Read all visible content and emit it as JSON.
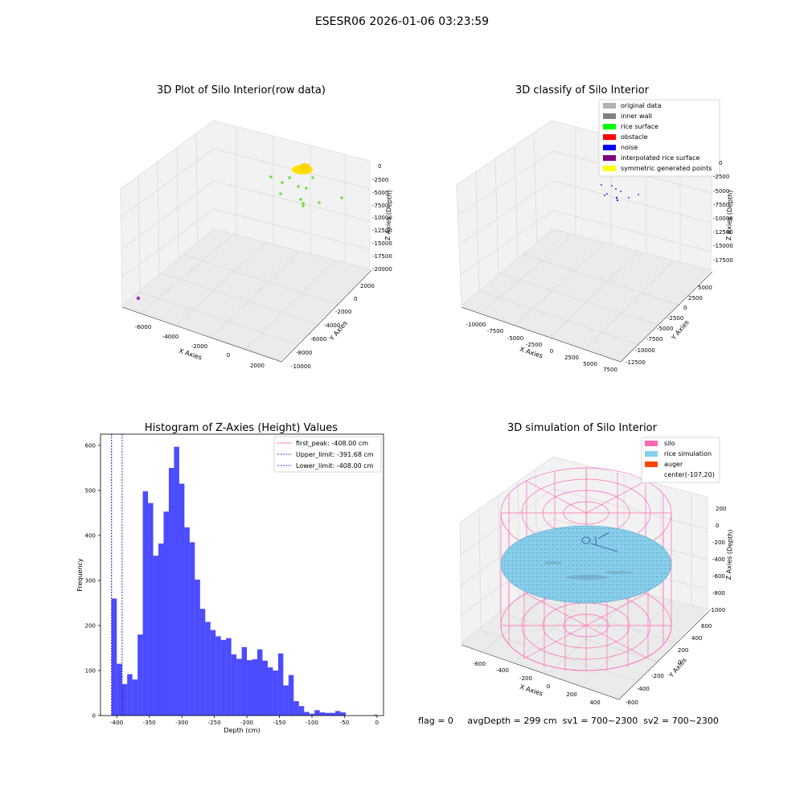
{
  "suptitle": "ESESR06 2026-01-06 03:23:59",
  "panel1": {
    "title": "3D Plot of Silo Interior(row data)",
    "xlabel": "X Axies",
    "ylabel": "Y Axies",
    "zlabel": "Z Axies (Depth)",
    "x_ticks": [
      "-6000",
      "-4000",
      "-2000",
      "0",
      "2000"
    ],
    "y_ticks": [
      "-10000",
      "-8000",
      "-6000",
      "-4000",
      "-2000",
      "0",
      "2000"
    ],
    "z_ticks": [
      "0",
      "-2500",
      "-5000",
      "-7500",
      "-10000",
      "-12500",
      "-15000",
      "-17500",
      "-20000"
    ],
    "colors": {
      "yellow": "#ffe000",
      "green": "#77dd44",
      "purple": "#9933bb"
    }
  },
  "panel2": {
    "title": "3D classify of Silo Interior",
    "xlabel": "X Axies",
    "ylabel": "Y Axies",
    "zlabel": "Z Axies (Depth)",
    "x_ticks": [
      "-10000",
      "-7500",
      "-5000",
      "-2500",
      "0",
      "2500",
      "5000",
      "7500"
    ],
    "y_ticks": [
      "-12500",
      "-10000",
      "-7500",
      "-5000",
      "-2500",
      "0",
      "2500",
      "5000"
    ],
    "z_ticks": [
      "0",
      "-2500",
      "-5000",
      "-7500",
      "-10000",
      "-12500",
      "-15000",
      "-17500"
    ],
    "legend": [
      {
        "label": "original data",
        "color": "#b0b0b0"
      },
      {
        "label": "inner wall",
        "color": "#808080"
      },
      {
        "label": "rice surface",
        "color": "#00ff00"
      },
      {
        "label": "obstacle",
        "color": "#ff0000"
      },
      {
        "label": "noise",
        "color": "#0000ff"
      },
      {
        "label": "interpolated rice surface",
        "color": "#800080"
      },
      {
        "label": "symmetric generated points",
        "color": "#ffff00"
      }
    ]
  },
  "chart_data": {
    "type": "bar",
    "title": "Histogram of Z-Axies (Height) Values",
    "xlabel": "Depth (cm)",
    "ylabel": "Frequency",
    "xlim": [
      -425,
      10
    ],
    "ylim": [
      0,
      625
    ],
    "x_ticks": [
      -400,
      -350,
      -300,
      -250,
      -200,
      -150,
      -100,
      -50,
      0
    ],
    "y_ticks": [
      0,
      100,
      200,
      300,
      400,
      500,
      600
    ],
    "bar_color": "#0000ff",
    "bars": [
      {
        "x0": -408,
        "x1": -400,
        "v": 260
      },
      {
        "x0": -400,
        "x1": -392,
        "v": 115
      },
      {
        "x0": -392,
        "x1": -384,
        "v": 70
      },
      {
        "x0": -384,
        "x1": -376,
        "v": 92
      },
      {
        "x0": -376,
        "x1": -368,
        "v": 80
      },
      {
        "x0": -368,
        "x1": -360,
        "v": 180
      },
      {
        "x0": -360,
        "x1": -352,
        "v": 498
      },
      {
        "x0": -352,
        "x1": -344,
        "v": 472
      },
      {
        "x0": -344,
        "x1": -336,
        "v": 355
      },
      {
        "x0": -336,
        "x1": -328,
        "v": 382
      },
      {
        "x0": -328,
        "x1": -320,
        "v": 453
      },
      {
        "x0": -320,
        "x1": -312,
        "v": 550
      },
      {
        "x0": -312,
        "x1": -304,
        "v": 597
      },
      {
        "x0": -304,
        "x1": -296,
        "v": 515
      },
      {
        "x0": -296,
        "x1": -288,
        "v": 418
      },
      {
        "x0": -288,
        "x1": -280,
        "v": 385
      },
      {
        "x0": -280,
        "x1": -272,
        "v": 302
      },
      {
        "x0": -272,
        "x1": -264,
        "v": 237
      },
      {
        "x0": -264,
        "x1": -256,
        "v": 208
      },
      {
        "x0": -256,
        "x1": -248,
        "v": 190
      },
      {
        "x0": -248,
        "x1": -240,
        "v": 176
      },
      {
        "x0": -240,
        "x1": -232,
        "v": 168
      },
      {
        "x0": -232,
        "x1": -224,
        "v": 172
      },
      {
        "x0": -224,
        "x1": -216,
        "v": 136
      },
      {
        "x0": -216,
        "x1": -208,
        "v": 126
      },
      {
        "x0": -208,
        "x1": -200,
        "v": 152
      },
      {
        "x0": -200,
        "x1": -192,
        "v": 123
      },
      {
        "x0": -192,
        "x1": -184,
        "v": 125
      },
      {
        "x0": -184,
        "x1": -176,
        "v": 147
      },
      {
        "x0": -176,
        "x1": -168,
        "v": 122
      },
      {
        "x0": -168,
        "x1": -160,
        "v": 107
      },
      {
        "x0": -160,
        "x1": -152,
        "v": 100
      },
      {
        "x0": -152,
        "x1": -144,
        "v": 138
      },
      {
        "x0": -144,
        "x1": -136,
        "v": 67
      },
      {
        "x0": -136,
        "x1": -128,
        "v": 90
      },
      {
        "x0": -128,
        "x1": -120,
        "v": 32
      },
      {
        "x0": -120,
        "x1": -112,
        "v": 21
      },
      {
        "x0": -112,
        "x1": -104,
        "v": 8
      },
      {
        "x0": -104,
        "x1": -96,
        "v": 4
      },
      {
        "x0": -96,
        "x1": -88,
        "v": 12
      },
      {
        "x0": -88,
        "x1": -80,
        "v": 7
      },
      {
        "x0": -80,
        "x1": -72,
        "v": 6
      },
      {
        "x0": -72,
        "x1": -64,
        "v": 6
      },
      {
        "x0": -64,
        "x1": -56,
        "v": 10
      },
      {
        "x0": -56,
        "x1": -48,
        "v": 7
      },
      {
        "x0": -4,
        "x1": 0,
        "v": 2
      }
    ],
    "vlines": [
      {
        "label": "first_peak: -408.00 cm",
        "x": -408,
        "color": "#ff0000"
      },
      {
        "label": "Upper_limit: -391.68 cm",
        "x": -391.68,
        "color": "#0000cc"
      },
      {
        "label": "Lower_limit: -408.00 cm",
        "x": -408,
        "color": "#0000ff"
      }
    ],
    "legend_position": "top-right"
  },
  "panel4": {
    "title": "3D simulation of Silo Interior",
    "xlabel": "X Axies",
    "ylabel": "Y Axies",
    "zlabel": "Z Axies (Depth)",
    "x_ticks": [
      "-600",
      "-400",
      "-200",
      "0",
      "200",
      "400"
    ],
    "y_ticks": [
      "-600",
      "-400",
      "-200",
      "0",
      "200",
      "400",
      "600"
    ],
    "z_ticks": [
      "200",
      "0",
      "-200",
      "-400",
      "-600",
      "-800",
      "-1000"
    ],
    "legend": [
      {
        "label": "silo",
        "color": "#ff69b4"
      },
      {
        "label": "rice simulation",
        "color": "#87ceeb"
      },
      {
        "label": "auger",
        "color": "#ff4500"
      },
      {
        "label": "center(-107,20)",
        "color": ""
      }
    ],
    "colors": {
      "silo": "#ff69b4",
      "rice": "#87ceeb",
      "rice_dot": "#6aa8c8"
    }
  },
  "footer": "flag = 0     avgDepth = 299 cm  sv1 = 700~2300  sv2 = 700~2300"
}
